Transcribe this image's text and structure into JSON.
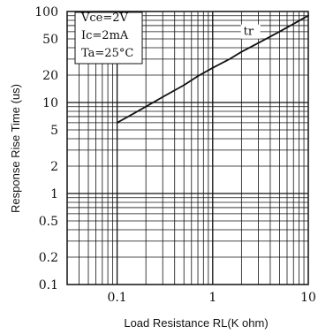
{
  "chart_data": {
    "type": "line",
    "xscale": "log",
    "yscale": "log",
    "xlim": [
      0.03,
      10
    ],
    "ylim": [
      0.1,
      100
    ],
    "xlabel": "Load Resistance RL(K ohm)",
    "ylabel": "Response Rise Time (us)",
    "x_ticks": [
      {
        "value": 0.1,
        "label": "0.1"
      },
      {
        "value": 1,
        "label": "1"
      },
      {
        "value": 10,
        "label": "10"
      }
    ],
    "y_ticks": [
      {
        "value": 100,
        "label": "100"
      },
      {
        "value": 50,
        "label": "50"
      },
      {
        "value": 20,
        "label": "20"
      },
      {
        "value": 10,
        "label": "10"
      },
      {
        "value": 5,
        "label": "5"
      },
      {
        "value": 2,
        "label": "2"
      },
      {
        "value": 1,
        "label": "1"
      },
      {
        "value": 0.5,
        "label": "0.5"
      },
      {
        "value": 0.2,
        "label": "0.2"
      },
      {
        "value": 0.1,
        "label": "0.1"
      }
    ],
    "grid": true,
    "conditions": [
      "Vce=2V",
      "Ic=2mA",
      "Ta=25°C"
    ],
    "series": [
      {
        "name": "tr",
        "x": [
          0.1,
          0.15,
          0.2,
          0.3,
          0.5,
          0.7,
          1,
          1.5,
          2,
          3,
          5,
          7,
          10
        ],
        "y": [
          6,
          7.6,
          9,
          11.5,
          15.5,
          19.5,
          24,
          30,
          36,
          45,
          60,
          73,
          90
        ]
      }
    ]
  }
}
